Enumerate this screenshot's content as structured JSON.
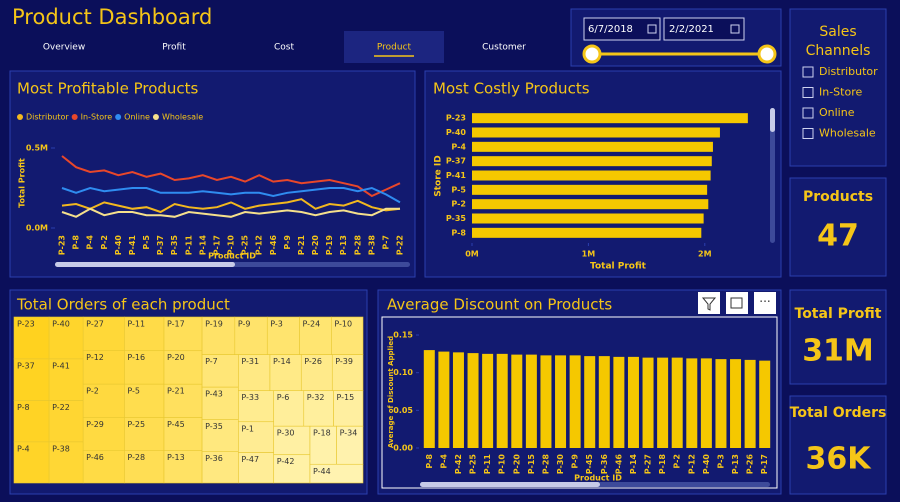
{
  "header": {
    "title": "Product Dashboard"
  },
  "nav": {
    "tabs": [
      "Overview",
      "Profit",
      "Cost",
      "Product",
      "Customer"
    ],
    "active": 3
  },
  "date_filter": {
    "start": "6/7/2018",
    "end": "2/2/2021"
  },
  "sales_channels": {
    "title": "Sales Channels",
    "options": [
      "Distributor",
      "In-Store",
      "Online",
      "Wholesale"
    ]
  },
  "cards": [
    {
      "label": "Products",
      "value": 47
    },
    {
      "label": "Total Profit",
      "value": "31M"
    },
    {
      "label": "Total Orders",
      "value": "36K"
    }
  ],
  "chart_data": [
    {
      "type": "line",
      "title": "Most Profitable Products",
      "x_label": "Product ID",
      "y_label": "Total Profit",
      "categories": [
        "P-23",
        "P-8",
        "P-4",
        "P-2",
        "P-40",
        "P-41",
        "P-5",
        "P-37",
        "P-35",
        "P-11",
        "P-14",
        "P-17",
        "P-10",
        "P-25",
        "P-12",
        "P-46",
        "P-9",
        "P-21",
        "P-20",
        "P-19",
        "P-13",
        "P-28",
        "P-38",
        "P-7",
        "P-22"
      ],
      "series": [
        {
          "name": "Distributor",
          "color": "#f2b81f",
          "values": [
            140000,
            150000,
            120000,
            160000,
            140000,
            120000,
            130000,
            100000,
            150000,
            130000,
            120000,
            130000,
            160000,
            120000,
            140000,
            150000,
            160000,
            180000,
            120000,
            150000,
            140000,
            170000,
            130000,
            110000,
            120000
          ]
        },
        {
          "name": "In-Store",
          "color": "#e8472a",
          "values": [
            450000,
            380000,
            350000,
            360000,
            330000,
            350000,
            320000,
            340000,
            300000,
            310000,
            330000,
            300000,
            320000,
            290000,
            330000,
            290000,
            300000,
            280000,
            290000,
            300000,
            280000,
            260000,
            200000,
            240000,
            280000
          ]
        },
        {
          "name": "Online",
          "color": "#2f8cf0",
          "values": [
            250000,
            220000,
            250000,
            230000,
            240000,
            250000,
            250000,
            220000,
            220000,
            220000,
            230000,
            220000,
            210000,
            220000,
            220000,
            200000,
            220000,
            230000,
            240000,
            250000,
            250000,
            230000,
            250000,
            210000,
            160000
          ]
        },
        {
          "name": "Wholesale",
          "color": "#f5e08c",
          "values": [
            100000,
            70000,
            120000,
            80000,
            100000,
            100000,
            80000,
            80000,
            70000,
            100000,
            90000,
            80000,
            70000,
            100000,
            90000,
            100000,
            110000,
            100000,
            80000,
            100000,
            110000,
            90000,
            80000,
            120000,
            120000
          ]
        }
      ],
      "ylim": [
        0,
        550000
      ],
      "yticks": [
        {
          "value": 0,
          "label": "0.0M"
        },
        {
          "value": 500000,
          "label": "0.5M"
        }
      ]
    },
    {
      "type": "hbar",
      "title": "Most Costly Products",
      "x_label": "Total Profit",
      "y_label": "Store ID",
      "categories": [
        "P-23",
        "P-40",
        "P-4",
        "P-37",
        "P-41",
        "P-5",
        "P-2",
        "P-35",
        "P-8"
      ],
      "values": [
        2370000,
        2130000,
        2070000,
        2060000,
        2050000,
        2020000,
        2030000,
        1990000,
        1970000
      ],
      "color": "#f5c800",
      "xlim": [
        0,
        2500000
      ],
      "xticks": [
        {
          "value": 0,
          "label": "0M"
        },
        {
          "value": 1000000,
          "label": "1M"
        },
        {
          "value": 2000000,
          "label": "2M"
        }
      ]
    },
    {
      "type": "treemap",
      "title": "Total Orders of each product",
      "categories": [
        "P-23",
        "P-37",
        "P-8",
        "P-4",
        "P-40",
        "P-41",
        "P-22",
        "P-38",
        "P-27",
        "P-12",
        "P-2",
        "P-29",
        "P-46",
        "P-11",
        "P-16",
        "P-5",
        "P-25",
        "P-28",
        "P-17",
        "P-20",
        "P-21",
        "P-45",
        "P-13",
        "P-19",
        "P-9",
        "P-3",
        "P-24",
        "P-10",
        "P-7",
        "P-43",
        "P-35",
        "P-36",
        "P-31",
        "P-14",
        "P-26",
        "P-39",
        "P-33",
        "P-1",
        "P-47",
        "P-6",
        "P-32",
        "P-15",
        "P-30",
        "P-42",
        "P-18",
        "P-34",
        "P-44"
      ],
      "values": [
        920,
        914,
        907,
        901,
        894,
        888,
        881,
        875,
        868,
        862,
        855,
        849,
        842,
        836,
        829,
        823,
        816,
        810,
        803,
        797,
        790,
        784,
        777,
        771,
        764,
        758,
        751,
        745,
        738,
        732,
        725,
        719,
        712,
        706,
        699,
        693,
        686,
        680,
        673,
        667,
        660,
        654,
        647,
        641,
        634,
        628,
        621
      ],
      "colors": [
        "#ffd21f",
        "#fff3b0"
      ]
    },
    {
      "type": "bar",
      "title": "Average Discount on Products",
      "x_label": "Product ID",
      "y_label": "Average of Discount Applied",
      "categories": [
        "P-8",
        "P-4",
        "P-42",
        "P-25",
        "P-11",
        "P-10",
        "P-20",
        "P-15",
        "P-28",
        "P-30",
        "P-9",
        "P-45",
        "P-36",
        "P-46",
        "P-14",
        "P-27",
        "P-18",
        "P-2",
        "P-12",
        "P-40",
        "P-3",
        "P-13",
        "P-26",
        "P-17"
      ],
      "values": [
        0.13,
        0.128,
        0.127,
        0.126,
        0.125,
        0.125,
        0.124,
        0.124,
        0.123,
        0.123,
        0.123,
        0.122,
        0.122,
        0.121,
        0.121,
        0.12,
        0.12,
        0.12,
        0.119,
        0.119,
        0.118,
        0.118,
        0.117,
        0.116
      ],
      "color": "#f5c800",
      "ylim": [
        0,
        0.16
      ],
      "yticks": [
        {
          "value": 0,
          "label": "0.00"
        },
        {
          "value": 0.05,
          "label": "0.05"
        },
        {
          "value": 0.1,
          "label": "0.10"
        },
        {
          "value": 0.15,
          "label": "0.15"
        }
      ]
    }
  ]
}
